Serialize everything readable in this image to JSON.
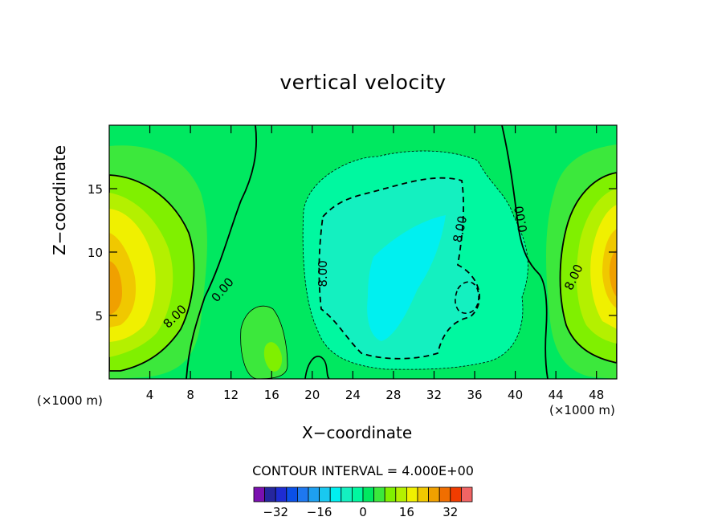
{
  "chart_data": {
    "type": "contour",
    "title": "vertical velocity",
    "xlabel": "X−coordinate",
    "ylabel": "Z−coordinate",
    "x_unit_left": "(×1000 m)",
    "x_unit_right": "(×1000 m)",
    "xlim": [
      0,
      50
    ],
    "ylim": [
      0,
      20
    ],
    "x_ticks": [
      4,
      8,
      12,
      16,
      20,
      24,
      28,
      32,
      36,
      40,
      44,
      48
    ],
    "x_tick_labels": [
      "4",
      "8",
      "12",
      "16",
      "20",
      "24",
      "28",
      "32",
      "36",
      "40",
      "44",
      "48"
    ],
    "y_ticks": [
      5,
      10,
      15
    ],
    "y_tick_labels": [
      "5",
      "10",
      "15"
    ],
    "contour_interval_text": "CONTOUR INTERVAL = 4.000E+00",
    "contour_labels": [
      {
        "text": "8.00",
        "x": 6.5,
        "y": 4.9,
        "angle": -45
      },
      {
        "text": "0.00",
        "x": 11.2,
        "y": 7.0,
        "angle": -50
      },
      {
        "text": "8.00",
        "x": 21.1,
        "y": 8.3,
        "angle": -90
      },
      {
        "text": "8.00",
        "x": 34.6,
        "y": 11.8,
        "angle": -78
      },
      {
        "text": "0.00",
        "x": 40.6,
        "y": 12.6,
        "angle": -100
      },
      {
        "text": "8.00",
        "x": 45.8,
        "y": 8.0,
        "angle": -65
      }
    ],
    "features": [
      {
        "kind": "updraft",
        "center": [
          1.5,
          7.5
        ],
        "max": 20
      },
      {
        "kind": "updraft",
        "center": [
          48.8,
          8.5
        ],
        "max": 24
      },
      {
        "kind": "downdraft",
        "center": [
          28.5,
          8.5
        ],
        "min": -14
      },
      {
        "kind": "updraft",
        "center": [
          16,
          2.5
        ],
        "max": 8
      }
    ],
    "colorbar": {
      "tick_values": [
        -32,
        -16,
        0,
        16,
        32
      ],
      "tick_labels": [
        "−32",
        "−16",
        "0",
        "16",
        "32"
      ],
      "bounds": [
        -40,
        -36,
        -32,
        -28,
        -24,
        -20,
        -16,
        -12,
        -8,
        -4,
        0,
        4,
        8,
        12,
        16,
        20,
        24,
        28,
        32,
        36,
        40
      ],
      "colors": [
        "#7a10b0",
        "#26269e",
        "#1e2cd2",
        "#0a50e8",
        "#1e78f0",
        "#1ea0f0",
        "#19c8f0",
        "#00f0f0",
        "#14f0c0",
        "#00f8a0",
        "#00e860",
        "#3ce83c",
        "#80f000",
        "#b4f000",
        "#f0f000",
        "#f0c800",
        "#f0a000",
        "#f06e00",
        "#f03c00",
        "#f06464"
      ]
    }
  }
}
